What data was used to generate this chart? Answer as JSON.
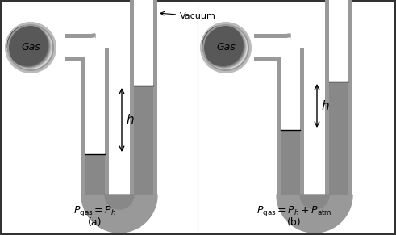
{
  "tube_outer_color": "#888888",
  "tube_inner_color": "#b8b8b8",
  "tube_wall_color": "#999999",
  "mercury_color": "#888888",
  "bg_color": "#ffffff",
  "border_color": "#444444",
  "gas_label": "Gas",
  "h_label": "h",
  "vacuum_label": "Vacuum",
  "eq_a_text": "$P_{\\mathrm{gas}} = P_h$",
  "eq_b_text": "$P_{\\mathrm{gas}} = P_h + P_{\\mathrm{atm}}$",
  "label_a": "(a)",
  "label_b": "(b)",
  "tube_wall": 5,
  "tube_inner": 12
}
